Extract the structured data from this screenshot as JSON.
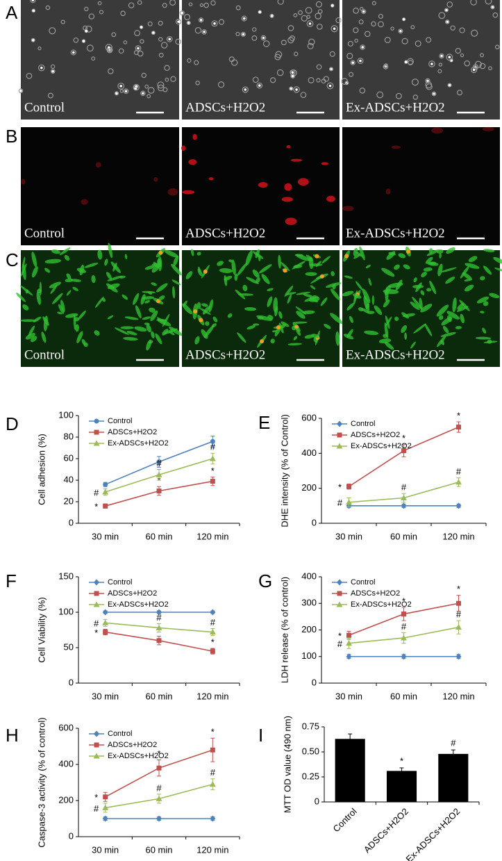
{
  "panel_letters": [
    "A",
    "B",
    "C",
    "D",
    "E",
    "F",
    "G",
    "H",
    "I"
  ],
  "image_rows": [
    {
      "labels": [
        "Control",
        "ADSCs+H2O2",
        "Ex-ADSCs+H2O2"
      ]
    },
    {
      "labels": [
        "Control",
        "ADSCs+H2O2",
        "Ex-ADSCs+H2O2"
      ]
    },
    {
      "labels": [
        "Control",
        "ADSCs+H2O2",
        "Ex-ADSCs+H2O2"
      ]
    }
  ],
  "chart_data": [
    {
      "type": "line",
      "ylabel": "Cell adhesion (%)",
      "categories": [
        "30 min",
        "60 min",
        "120 min"
      ],
      "ylim": [
        0,
        100
      ],
      "yticks": [
        0,
        20,
        40,
        60,
        80,
        100
      ],
      "legend": "upper left",
      "series": [
        {
          "name": "Control",
          "color": "#4f81bd",
          "marker": "circle",
          "values": [
            36,
            57,
            76
          ],
          "errors": [
            2,
            5,
            5
          ]
        },
        {
          "name": "ADSCs+H2O2",
          "color": "#c0504d",
          "marker": "square",
          "values": [
            16,
            30,
            39
          ],
          "errors": [
            2,
            4,
            4
          ],
          "annotations": [
            "*",
            "*",
            "*"
          ]
        },
        {
          "name": "Ex-ADSCs+H2O2",
          "color": "#9bbb59",
          "marker": "triangle",
          "values": [
            29,
            45,
            60
          ],
          "errors": [
            3,
            5,
            5
          ],
          "annotations": [
            "#",
            "#",
            "#"
          ]
        }
      ]
    },
    {
      "type": "line",
      "ylabel": "DHE intensity (% of Control)",
      "categories": [
        "30 min",
        "60 min",
        "120 min"
      ],
      "ylim": [
        0,
        600
      ],
      "yticks": [
        0,
        200,
        400,
        600
      ],
      "legend": "upper left",
      "series": [
        {
          "name": "Control",
          "color": "#4f81bd",
          "marker": "diamond",
          "values": [
            100,
            100,
            100
          ],
          "errors": [
            10,
            10,
            10
          ]
        },
        {
          "name": "ADSCs+H2O2",
          "color": "#c0504d",
          "marker": "square",
          "values": [
            210,
            415,
            550
          ],
          "errors": [
            15,
            35,
            30
          ],
          "annotations": [
            "*",
            "*",
            "*"
          ]
        },
        {
          "name": "Ex-ADSCs+H2O2",
          "color": "#9bbb59",
          "marker": "triangle",
          "values": [
            120,
            145,
            235
          ],
          "errors": [
            25,
            25,
            25
          ],
          "annotations": [
            "#",
            "#",
            "#"
          ]
        }
      ]
    },
    {
      "type": "line",
      "ylabel": "Cell Viability (%)",
      "categories": [
        "30 min",
        "60 min",
        "120 min"
      ],
      "ylim": [
        0,
        150
      ],
      "yticks": [
        0,
        50,
        100,
        150
      ],
      "legend": "upper left",
      "series": [
        {
          "name": "Control",
          "color": "#4f81bd",
          "marker": "diamond",
          "values": [
            100,
            100,
            100
          ],
          "errors": [
            2,
            2,
            2
          ]
        },
        {
          "name": "ADSCs+H2O2",
          "color": "#c0504d",
          "marker": "square",
          "values": [
            72,
            60,
            45
          ],
          "errors": [
            4,
            6,
            4
          ],
          "annotations": [
            "*",
            "*",
            "*"
          ]
        },
        {
          "name": "Ex-ADSCs+H2O2",
          "color": "#9bbb59",
          "marker": "triangle",
          "values": [
            85,
            78,
            72
          ],
          "errors": [
            5,
            6,
            5
          ],
          "annotations": [
            "#",
            "#",
            "#"
          ]
        }
      ]
    },
    {
      "type": "line",
      "ylabel": "LDH release (% of control)",
      "categories": [
        "30 min",
        "60 min",
        "120 min"
      ],
      "ylim": [
        0,
        400
      ],
      "yticks": [
        0,
        100,
        200,
        300,
        400
      ],
      "legend": "upper left",
      "series": [
        {
          "name": "Control",
          "color": "#4f81bd",
          "marker": "diamond",
          "values": [
            100,
            100,
            100
          ],
          "errors": [
            8,
            8,
            8
          ]
        },
        {
          "name": "ADSCs+H2O2",
          "color": "#c0504d",
          "marker": "square",
          "values": [
            180,
            260,
            300
          ],
          "errors": [
            15,
            25,
            30
          ],
          "annotations": [
            "*",
            "*",
            "*"
          ]
        },
        {
          "name": "Ex-ADSCs+H2O2",
          "color": "#9bbb59",
          "marker": "triangle",
          "values": [
            150,
            170,
            210
          ],
          "errors": [
            20,
            20,
            25
          ],
          "annotations": [
            "#",
            "#",
            "#"
          ]
        }
      ]
    },
    {
      "type": "line",
      "ylabel": "Caspase-3 activity (% of control)",
      "categories": [
        "30 min",
        "60 min",
        "120 min"
      ],
      "ylim": [
        0,
        600
      ],
      "yticks": [
        0,
        200,
        400,
        600
      ],
      "legend": "upper left",
      "series": [
        {
          "name": "Control",
          "color": "#4f81bd",
          "marker": "diamond",
          "values": [
            100,
            100,
            100
          ],
          "errors": [
            10,
            10,
            10
          ]
        },
        {
          "name": "ADSCs+H2O2",
          "color": "#c0504d",
          "marker": "square",
          "values": [
            220,
            380,
            480
          ],
          "errors": [
            25,
            45,
            65
          ],
          "annotations": [
            "*",
            "*",
            "*"
          ]
        },
        {
          "name": "Ex-ADSCs+H2O2",
          "color": "#9bbb59",
          "marker": "triangle",
          "values": [
            160,
            210,
            290
          ],
          "errors": [
            25,
            25,
            30
          ],
          "annotations": [
            "#",
            "#",
            "#"
          ]
        }
      ]
    },
    {
      "type": "bar",
      "ylabel": "MTT OD value (490 nm)",
      "categories": [
        "Control",
        "ADSCs+H2O2",
        "Ex-ADSCs+H2O2"
      ],
      "values": [
        0.63,
        0.31,
        0.48
      ],
      "errors": [
        0.05,
        0.03,
        0.04
      ],
      "annotations": [
        null,
        "*",
        "#"
      ],
      "color": "#000000",
      "ylim": [
        0,
        0.75
      ],
      "yticks": [
        0,
        0.25,
        {
          "value": 0.5,
          "label": "0.50"
        },
        0.75
      ]
    }
  ]
}
